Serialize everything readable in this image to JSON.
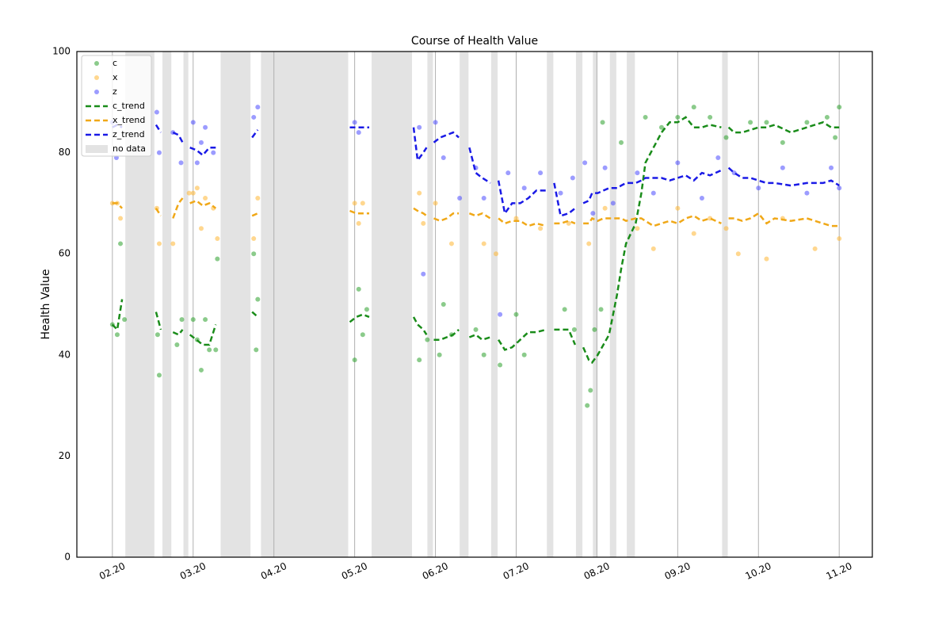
{
  "chart_data": {
    "type": "scatter",
    "title": "Course of Health Value",
    "ylabel": "Health Value",
    "xlim": [
      -0.44,
      9.41
    ],
    "ylim": [
      0,
      100
    ],
    "yticks": [
      0,
      20,
      40,
      60,
      80,
      100
    ],
    "xticks": [
      {
        "value": 0,
        "label": "02.20"
      },
      {
        "value": 1,
        "label": "03.20"
      },
      {
        "value": 2,
        "label": "04.20"
      },
      {
        "value": 3,
        "label": "05.20"
      },
      {
        "value": 4,
        "label": "06.20"
      },
      {
        "value": 5,
        "label": "07.20"
      },
      {
        "value": 6,
        "label": "08.20"
      },
      {
        "value": 7,
        "label": "09.20"
      },
      {
        "value": 8,
        "label": "10.20"
      },
      {
        "value": 9,
        "label": "11.20"
      }
    ],
    "xgrid": true,
    "no_data": {
      "name": "no data",
      "color": "#e3e3e3",
      "spans": [
        [
          0.16,
          0.52
        ],
        [
          0.62,
          0.73
        ],
        [
          0.88,
          0.94
        ],
        [
          1.34,
          1.71
        ],
        [
          1.84,
          2.92
        ],
        [
          3.21,
          3.71
        ],
        [
          3.9,
          3.97
        ],
        [
          4.3,
          4.41
        ],
        [
          4.69,
          4.77
        ],
        [
          5.38,
          5.46
        ],
        [
          5.74,
          5.82
        ],
        [
          5.95,
          6.0
        ],
        [
          6.16,
          6.24
        ],
        [
          6.37,
          6.47
        ],
        [
          7.55,
          7.62
        ]
      ]
    },
    "series": [
      {
        "name": "c",
        "color": "#2ca02c",
        "x": [
          0.0,
          0.06,
          0.1,
          0.15,
          0.56,
          0.58,
          0.8,
          0.86,
          1.0,
          1.05,
          1.1,
          1.15,
          1.2,
          1.28,
          1.3,
          1.75,
          1.78,
          1.8,
          3.0,
          3.05,
          3.1,
          3.15,
          3.8,
          3.9,
          4.05,
          4.1,
          4.2,
          4.5,
          4.6,
          4.8,
          5.0,
          5.1,
          5.6,
          5.72,
          5.88,
          5.92,
          5.97,
          6.05,
          6.07,
          6.3,
          6.6,
          6.8,
          7.0,
          7.2,
          7.4,
          7.6,
          7.9,
          8.1,
          8.3,
          8.6,
          8.85,
          9.0,
          8.95
        ],
        "values": [
          46,
          44,
          62,
          47,
          44,
          36,
          42,
          47,
          47,
          43,
          37,
          47,
          41,
          41,
          59,
          60,
          41,
          51,
          39,
          53,
          44,
          49,
          39,
          43,
          40,
          50,
          44,
          45,
          40,
          38,
          48,
          40,
          49,
          45,
          30,
          33,
          45,
          49,
          86,
          82,
          87,
          85,
          87,
          89,
          87,
          83,
          86,
          86,
          82,
          86,
          87,
          89,
          83
        ]
      },
      {
        "name": "x",
        "color": "#ffb733",
        "x": [
          0.0,
          0.06,
          0.1,
          0.55,
          0.58,
          0.75,
          0.95,
          1.0,
          1.05,
          1.1,
          1.15,
          1.25,
          1.3,
          1.75,
          1.8,
          3.0,
          3.05,
          3.1,
          3.8,
          3.85,
          4.0,
          4.2,
          4.6,
          4.75,
          5.0,
          5.3,
          5.65,
          5.9,
          6.1,
          6.5,
          6.7,
          7.0,
          7.2,
          7.4,
          7.6,
          7.75,
          8.1,
          8.3,
          8.7,
          9.0
        ],
        "values": [
          70,
          70,
          67,
          69,
          62,
          62,
          72,
          72,
          73,
          65,
          71,
          69,
          63,
          63,
          71,
          70,
          66,
          70,
          72,
          66,
          70,
          62,
          62,
          60,
          67,
          65,
          66,
          62,
          69,
          65,
          61,
          69,
          64,
          67,
          65,
          60,
          59,
          67,
          61,
          63
        ]
      },
      {
        "name": "z",
        "color": "#4a4aff",
        "x": [
          0.0,
          0.05,
          0.55,
          0.58,
          0.75,
          0.85,
          1.0,
          1.05,
          1.1,
          1.15,
          1.25,
          1.75,
          1.8,
          3.0,
          3.05,
          3.8,
          3.85,
          4.0,
          4.1,
          4.3,
          4.5,
          4.6,
          4.8,
          4.9,
          5.1,
          5.3,
          5.55,
          5.7,
          5.85,
          5.95,
          6.1,
          6.2,
          6.5,
          6.7,
          7.0,
          7.3,
          7.5,
          7.7,
          8.0,
          8.3,
          8.6,
          8.9,
          9.0
        ],
        "values": [
          86,
          79,
          88,
          80,
          84,
          78,
          86,
          78,
          82,
          85,
          80,
          87,
          89,
          86,
          84,
          85,
          56,
          86,
          79,
          71,
          77,
          71,
          48,
          76,
          73,
          76,
          72,
          75,
          78,
          68,
          77,
          70,
          76,
          72,
          78,
          71,
          79,
          76,
          73,
          77,
          72,
          77,
          73
        ]
      }
    ],
    "trends": {
      "x": [
        0,
        0.06,
        0.12,
        0.3,
        0.54,
        0.6,
        0.68,
        0.75,
        0.82,
        0.87,
        0.91,
        0.96,
        1.04,
        1.12,
        1.2,
        1.28,
        1.5,
        1.73,
        1.8,
        2.4,
        2.94,
        3.02,
        3.1,
        3.18,
        3.5,
        3.73,
        3.78,
        3.85,
        3.89,
        3.93,
        3.98,
        4.06,
        4.14,
        4.22,
        4.29,
        4.35,
        4.42,
        4.5,
        4.58,
        4.68,
        4.73,
        4.78,
        4.86,
        4.95,
        5.05,
        5.15,
        5.25,
        5.37,
        5.42,
        5.47,
        5.55,
        5.65,
        5.73,
        5.78,
        5.83,
        5.9,
        5.94,
        6.01,
        6.08,
        6.15,
        6.25,
        6.3,
        6.36,
        6.48,
        6.55,
        6.6,
        6.7,
        6.8,
        6.9,
        7.0,
        7.1,
        7.2,
        7.3,
        7.4,
        7.54,
        7.58,
        7.63,
        7.7,
        7.8,
        7.9,
        8.0,
        8.1,
        8.2,
        8.4,
        8.6,
        8.8,
        8.9,
        9.0
      ],
      "series": [
        {
          "name": "c_trend",
          "color": "#1a8c1a",
          "values": [
            46,
            45,
            51,
            null,
            48.5,
            45,
            null,
            44.5,
            44,
            45,
            null,
            44,
            43,
            42,
            42,
            46,
            null,
            48.5,
            47.5,
            null,
            46.5,
            47.5,
            48,
            47.5,
            null,
            47.5,
            46,
            45,
            44,
            null,
            43,
            43,
            43.5,
            44,
            45,
            null,
            43.5,
            44,
            43,
            43.5,
            null,
            43,
            41,
            41.5,
            43,
            44.5,
            44.5,
            45,
            null,
            45,
            45,
            45,
            42,
            null,
            41.5,
            39,
            38.5,
            40,
            42,
            44,
            52,
            57,
            62,
            66,
            72,
            78,
            81,
            84,
            86,
            86,
            87,
            85,
            85,
            85.5,
            85,
            null,
            85,
            84,
            84,
            84.5,
            85,
            85,
            85.5,
            84,
            85,
            86,
            85,
            85
          ]
        },
        {
          "name": "x_trend",
          "color": "#f0a818",
          "values": [
            70,
            70,
            69,
            null,
            69,
            67.5,
            null,
            67,
            70,
            71,
            null,
            70,
            70.5,
            69.5,
            70,
            69,
            null,
            67.5,
            68,
            null,
            68.5,
            68,
            68,
            68,
            null,
            69,
            68.5,
            68,
            67.5,
            null,
            67,
            66.5,
            67,
            68,
            68,
            null,
            68,
            67.5,
            68,
            67,
            null,
            67,
            66,
            66.5,
            66.5,
            65.5,
            66,
            65.5,
            null,
            66,
            66,
            66.5,
            66,
            null,
            66,
            66,
            67,
            66.5,
            67,
            67,
            67,
            67,
            66.5,
            67,
            67,
            66.5,
            65.5,
            66,
            66.5,
            66,
            67,
            67.5,
            66.5,
            67,
            66,
            null,
            67,
            67,
            66.5,
            67,
            68,
            66,
            67,
            66.5,
            67,
            66,
            65.5,
            65.5
          ]
        },
        {
          "name": "z_trend",
          "color": "#1a1ae6",
          "values": [
            85,
            85.5,
            85,
            null,
            85.5,
            84,
            null,
            84,
            83.5,
            82,
            null,
            81,
            80.5,
            79.5,
            81,
            81,
            null,
            83,
            84.5,
            null,
            85,
            85,
            85,
            85,
            null,
            85,
            78.5,
            80,
            81,
            null,
            82,
            83,
            83.5,
            84,
            83,
            null,
            81,
            76,
            75,
            74,
            null,
            74.5,
            68,
            70,
            70,
            71,
            72.5,
            72.5,
            null,
            74,
            67.5,
            68,
            69,
            null,
            70,
            70.5,
            72,
            72,
            72.5,
            73,
            73,
            73.5,
            74,
            74,
            74.5,
            75,
            75,
            75,
            74.5,
            75,
            75.5,
            74.5,
            76,
            75.5,
            76.5,
            null,
            77,
            76,
            75,
            75,
            74.5,
            74,
            74,
            73.5,
            74,
            74,
            74.5,
            73.5
          ]
        }
      ]
    }
  }
}
